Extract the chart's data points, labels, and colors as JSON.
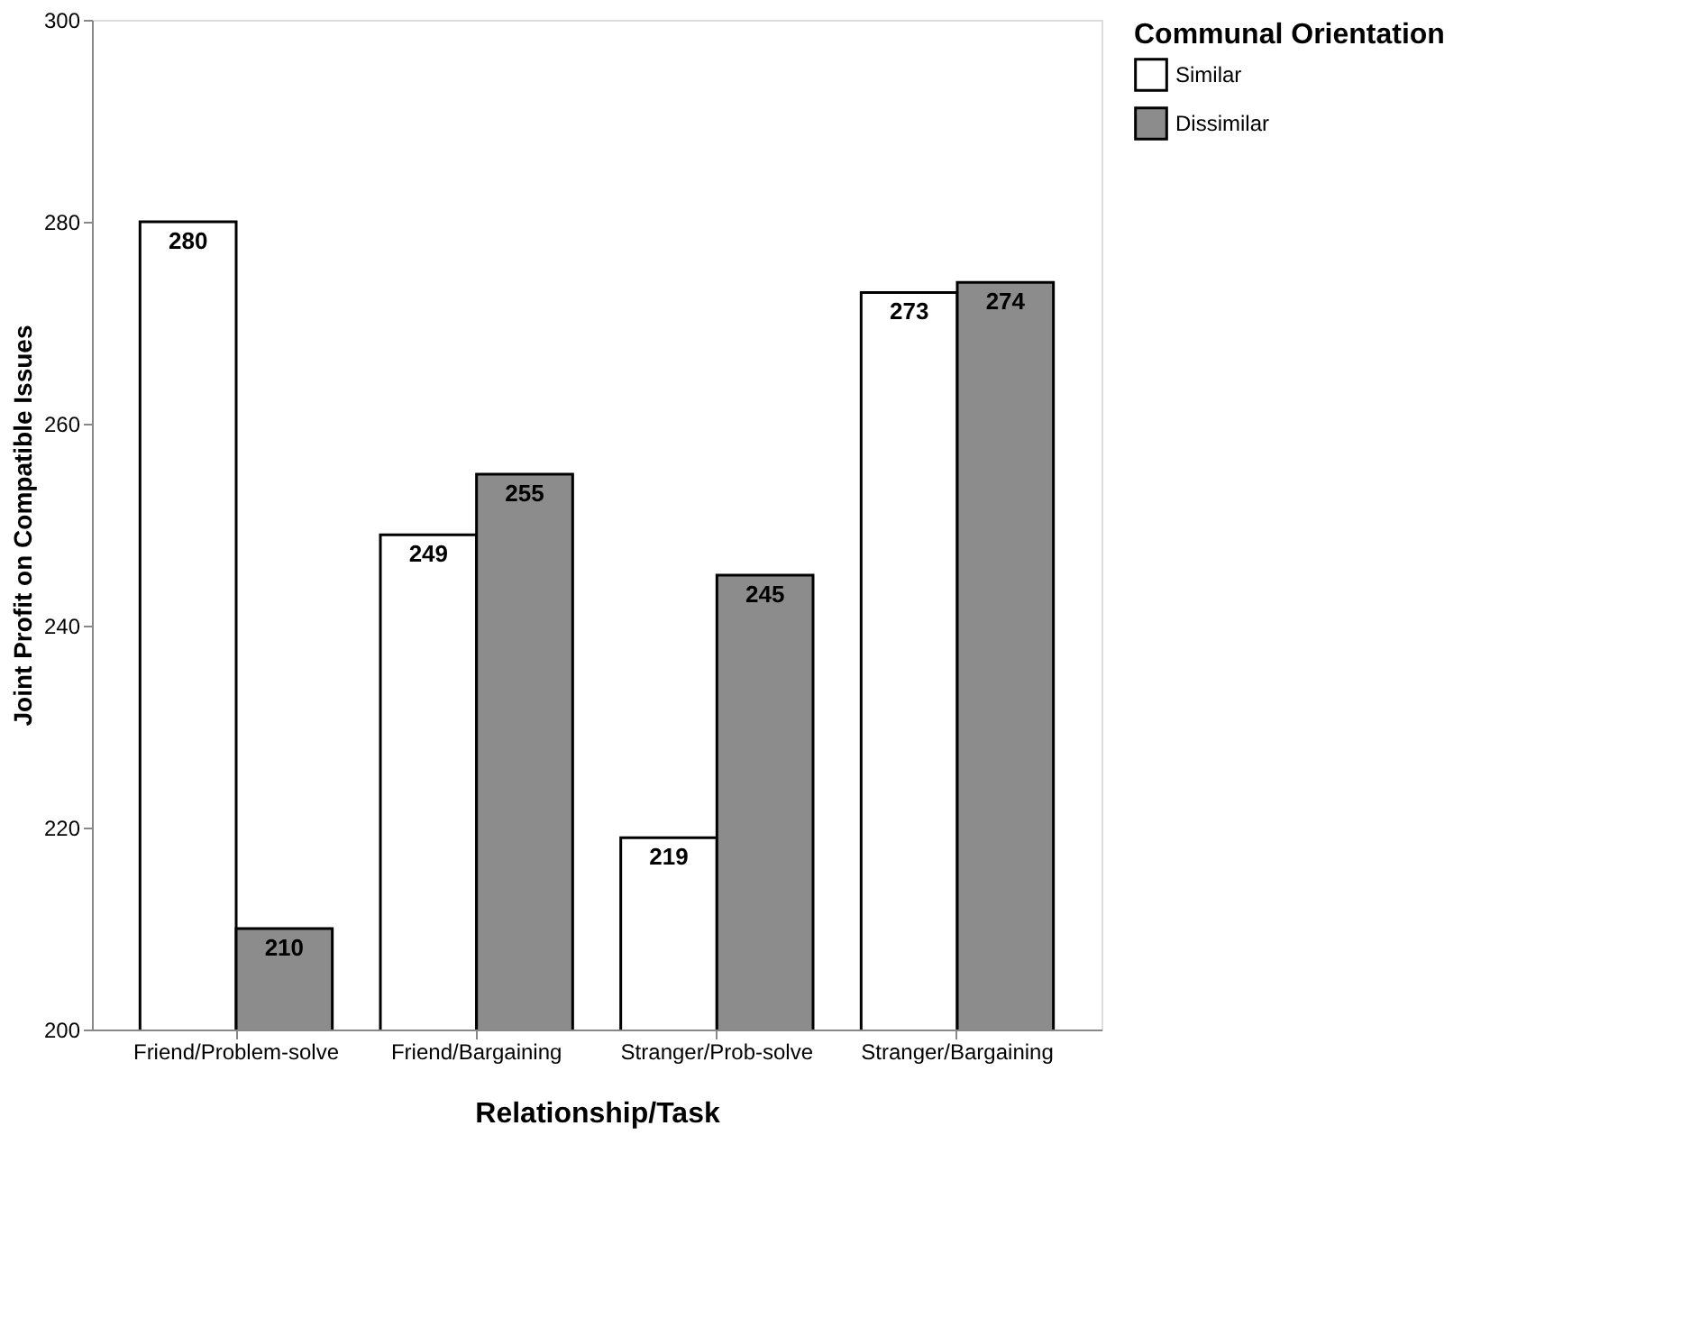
{
  "chart_data": {
    "type": "bar",
    "xlabel": "Relationship/Task",
    "ylabel": "Joint Profit on Compatible Issues",
    "legend_title": "Communal Orientation",
    "categories": [
      "Friend/Problem-solve",
      "Friend/Bargaining",
      "Stranger/Prob-solve",
      "Stranger/Bargaining"
    ],
    "series": [
      {
        "name": "Similar",
        "color": "#ffffff",
        "values": [
          280,
          249,
          219,
          273
        ]
      },
      {
        "name": "Dissimilar",
        "color": "#8c8c8c",
        "values": [
          210,
          255,
          245,
          274
        ]
      }
    ],
    "ylim": [
      200,
      300
    ],
    "yticks": [
      200,
      220,
      240,
      260,
      280,
      300
    ],
    "grid": false,
    "legend": "right",
    "data_labels": true
  }
}
